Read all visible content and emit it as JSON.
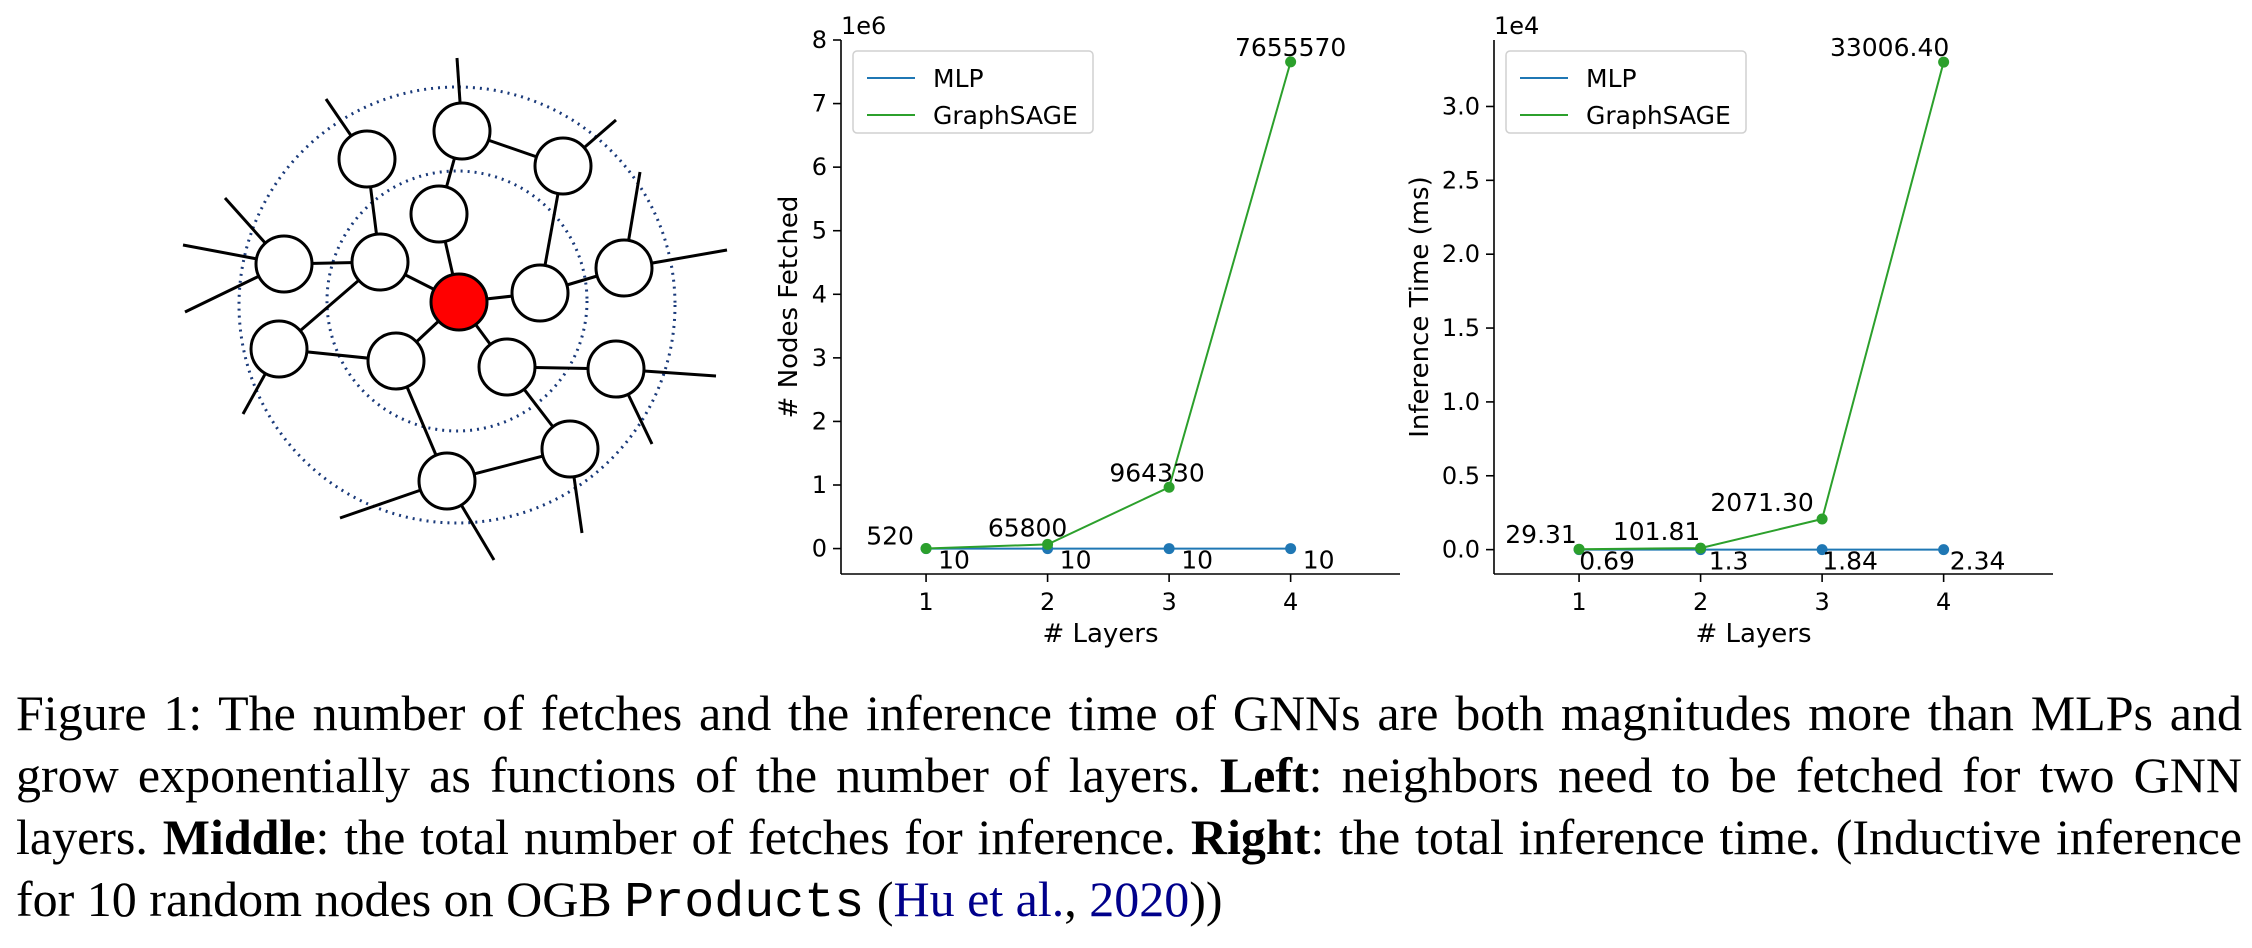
{
  "colors": {
    "mlp": "#1f77b4",
    "graphsage": "#2ca02c",
    "target_node": "#ff0000",
    "hop_circle": "#1a3a7a"
  },
  "chart_data": [
    {
      "type": "line",
      "x": [
        1,
        2,
        3,
        4
      ],
      "xlabel": "# Layers",
      "ylabel": "# Nodes Fetched",
      "scale_label": "1e6",
      "ylim": [
        -400000,
        8000000
      ],
      "yticks": [
        0,
        1000000,
        2000000,
        3000000,
        4000000,
        5000000,
        6000000,
        7000000,
        8000000
      ],
      "ytick_labels": [
        "0",
        "1",
        "2",
        "3",
        "4",
        "5",
        "6",
        "7",
        "8"
      ],
      "xticks": [
        1,
        2,
        3,
        4
      ],
      "xtick_labels": [
        "1",
        "2",
        "3",
        "4"
      ],
      "legend": "top-left",
      "grid": false,
      "series": [
        {
          "name": "MLP",
          "values": [
            10,
            10,
            10,
            10
          ],
          "labels": [
            "10",
            "10",
            "10",
            "10"
          ]
        },
        {
          "name": "GraphSAGE",
          "values": [
            520,
            65800,
            964330,
            7655570
          ],
          "labels": [
            "520",
            "65800",
            "964330",
            "7655570"
          ]
        }
      ]
    },
    {
      "type": "line",
      "x": [
        1,
        2,
        3,
        4
      ],
      "xlabel": "# Layers",
      "ylabel": "Inference Time (ms)",
      "scale_label": "1e4",
      "ylim": [
        -1650,
        34500
      ],
      "yticks": [
        0,
        5000,
        10000,
        15000,
        20000,
        25000,
        30000
      ],
      "ytick_labels": [
        "0.0",
        "0.5",
        "1.0",
        "1.5",
        "2.0",
        "2.5",
        "3.0"
      ],
      "xticks": [
        1,
        2,
        3,
        4
      ],
      "xtick_labels": [
        "1",
        "2",
        "3",
        "4"
      ],
      "legend": "top-left",
      "grid": false,
      "series": [
        {
          "name": "MLP",
          "values": [
            0.69,
            1.3,
            1.84,
            2.34
          ],
          "labels": [
            "0.69",
            "1.3",
            "1.84",
            "2.34"
          ]
        },
        {
          "name": "GraphSAGE",
          "values": [
            29.31,
            101.81,
            2071.3,
            33006.4
          ],
          "labels": [
            "29.31",
            "101.81",
            "2071.30",
            "33006.40"
          ]
        }
      ]
    }
  ],
  "caption": {
    "lead": "Figure 1: The number of fetches and the inference time of GNNs are both magnitudes more than MLPs and grow exponentially as functions of the number of layers.",
    "left_label": "Left",
    "left_text": ": neighbors need to be fetched for two GNN layers.",
    "middle_label": "Middle",
    "middle_text": ": the total number of fetches for inference.",
    "right_label": "Right",
    "right_text": ": the total inference time. (Inductive inference for 10 random nodes on OGB",
    "dataset": "Products",
    "open_paren": "(",
    "cite_authors": "Hu et al.",
    "comma": ", ",
    "cite_year": "2020",
    "close": "))"
  }
}
